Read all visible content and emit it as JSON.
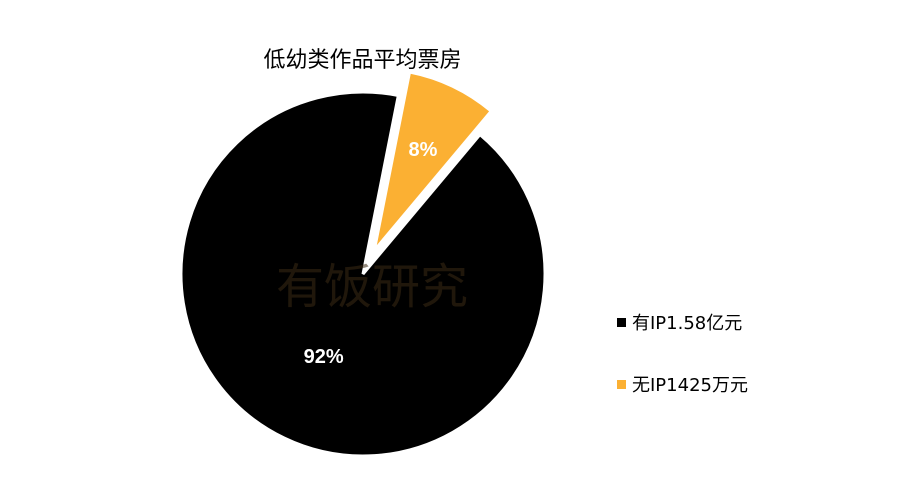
{
  "chart_data": {
    "type": "pie",
    "title": "低幼类作品平均票房",
    "series": [
      {
        "name": "有IP1.58亿元",
        "value": 92,
        "label": "92%",
        "color": "#000000"
      },
      {
        "name": "无IP1425万元",
        "value": 8,
        "label": "8%",
        "color": "#FBB033"
      }
    ],
    "legend": "right",
    "exploded_slice": "无IP1425万元"
  },
  "watermark": "有饭研究"
}
